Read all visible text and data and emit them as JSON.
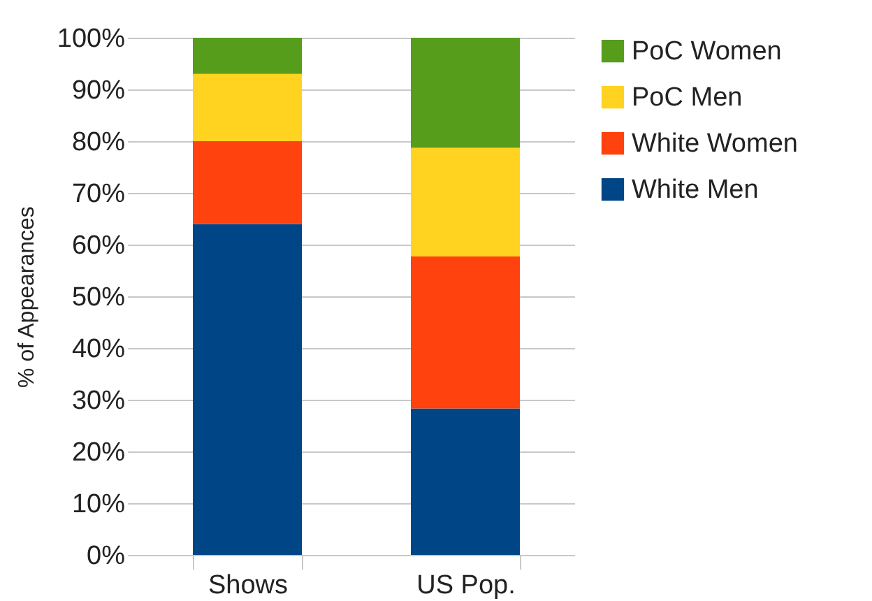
{
  "chart_data": {
    "type": "bar",
    "stacked": true,
    "ylabel": "% of Appearances",
    "categories": [
      "Shows",
      "US Pop."
    ],
    "series": [
      {
        "name": "White Men",
        "color": "#004586",
        "values": [
          64,
          28.3
        ]
      },
      {
        "name": "White Women",
        "color": "#ff420e",
        "values": [
          16,
          29.4
        ]
      },
      {
        "name": "PoC Men",
        "color": "#ffd320",
        "values": [
          13,
          21
        ]
      },
      {
        "name": "PoC Women",
        "color": "#579d1c",
        "values": [
          7,
          21.3
        ]
      }
    ],
    "ylim": [
      0,
      100
    ],
    "yticks": [
      {
        "value": 0,
        "label": "0%"
      },
      {
        "value": 10,
        "label": "10%"
      },
      {
        "value": 20,
        "label": "20%"
      },
      {
        "value": 30,
        "label": "30%"
      },
      {
        "value": 40,
        "label": "40%"
      },
      {
        "value": 50,
        "label": "50%"
      },
      {
        "value": 60,
        "label": "60%"
      },
      {
        "value": 70,
        "label": "70%"
      },
      {
        "value": 80,
        "label": "80%"
      },
      {
        "value": 90,
        "label": "90%"
      },
      {
        "value": 100,
        "label": "100%"
      }
    ],
    "grid": "y",
    "legend": "right"
  }
}
